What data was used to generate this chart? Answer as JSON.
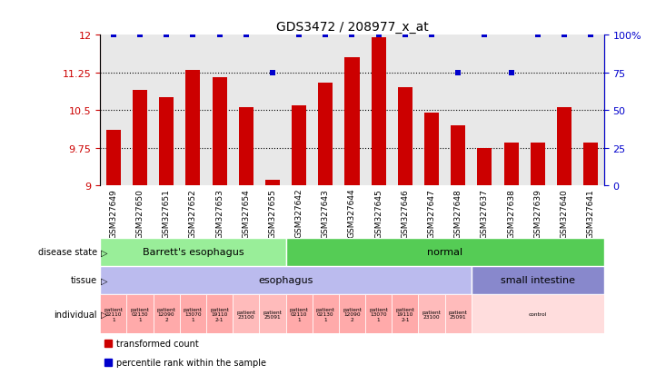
{
  "title": "GDS3472 / 208977_x_at",
  "samples": [
    "GSM327649",
    "GSM327650",
    "GSM327651",
    "GSM327652",
    "GSM327653",
    "GSM327654",
    "GSM327655",
    "GSM327642",
    "GSM327643",
    "GSM327644",
    "GSM327645",
    "GSM327646",
    "GSM327647",
    "GSM327648",
    "GSM327637",
    "GSM327638",
    "GSM327639",
    "GSM327640",
    "GSM327641"
  ],
  "bar_values": [
    10.1,
    10.9,
    10.75,
    11.3,
    11.15,
    10.55,
    9.1,
    10.6,
    11.05,
    11.55,
    11.95,
    10.95,
    10.45,
    10.2,
    9.75,
    9.85,
    9.85,
    10.55,
    9.85
  ],
  "percentile_values": [
    100,
    100,
    100,
    100,
    100,
    100,
    75,
    100,
    100,
    100,
    100,
    100,
    100,
    75,
    100,
    75,
    100,
    100,
    100
  ],
  "ylim_left": [
    9.0,
    12.0
  ],
  "ylim_right": [
    0,
    100
  ],
  "yticks_left": [
    9.0,
    9.75,
    10.5,
    11.25,
    12.0
  ],
  "yticks_right": [
    0,
    25,
    50,
    75,
    100
  ],
  "ytick_labels_left": [
    "9",
    "9.75",
    "10.5",
    "11.25",
    "12"
  ],
  "ytick_labels_right": [
    "0",
    "25",
    "50",
    "75",
    "100%"
  ],
  "hlines": [
    9.75,
    10.5,
    11.25
  ],
  "bar_color": "#cc0000",
  "dot_color": "#0000cc",
  "disease_state_groups": [
    {
      "label": "Barrett's esophagus",
      "start": 0,
      "end": 7,
      "color": "#99ee99"
    },
    {
      "label": "normal",
      "start": 7,
      "end": 19,
      "color": "#55cc55"
    }
  ],
  "tissue_groups": [
    {
      "label": "esophagus",
      "start": 0,
      "end": 14,
      "color": "#bbbbee"
    },
    {
      "label": "small intestine",
      "start": 14,
      "end": 19,
      "color": "#8888cc"
    }
  ],
  "individual_groups": [
    {
      "label": "patient\n02110\n1",
      "start": 0,
      "end": 1,
      "color": "#ffaaaa"
    },
    {
      "label": "patient\n02130\n1",
      "start": 1,
      "end": 2,
      "color": "#ffaaaa"
    },
    {
      "label": "patient\n12090\n2",
      "start": 2,
      "end": 3,
      "color": "#ffaaaa"
    },
    {
      "label": "patient\n13070\n1",
      "start": 3,
      "end": 4,
      "color": "#ffaaaa"
    },
    {
      "label": "patient\n19110\n2-1",
      "start": 4,
      "end": 5,
      "color": "#ffaaaa"
    },
    {
      "label": "patient\n23100",
      "start": 5,
      "end": 6,
      "color": "#ffbbbb"
    },
    {
      "label": "patient\n25091",
      "start": 6,
      "end": 7,
      "color": "#ffbbbb"
    },
    {
      "label": "patient\n02110\n1",
      "start": 7,
      "end": 8,
      "color": "#ffaaaa"
    },
    {
      "label": "patient\n02130\n1",
      "start": 8,
      "end": 9,
      "color": "#ffaaaa"
    },
    {
      "label": "patient\n12090\n2",
      "start": 9,
      "end": 10,
      "color": "#ffaaaa"
    },
    {
      "label": "patient\n13070\n1",
      "start": 10,
      "end": 11,
      "color": "#ffaaaa"
    },
    {
      "label": "patient\n19110\n2-1",
      "start": 11,
      "end": 12,
      "color": "#ffaaaa"
    },
    {
      "label": "patient\n23100",
      "start": 12,
      "end": 13,
      "color": "#ffbbbb"
    },
    {
      "label": "patient\n25091",
      "start": 13,
      "end": 14,
      "color": "#ffbbbb"
    },
    {
      "label": "control",
      "start": 14,
      "end": 19,
      "color": "#ffdddd"
    }
  ],
  "legend_items": [
    {
      "label": "transformed count",
      "color": "#cc0000"
    },
    {
      "label": "percentile rank within the sample",
      "color": "#0000cc"
    }
  ],
  "bg_color": "#ffffff",
  "chart_bg_color": "#e8e8e8"
}
